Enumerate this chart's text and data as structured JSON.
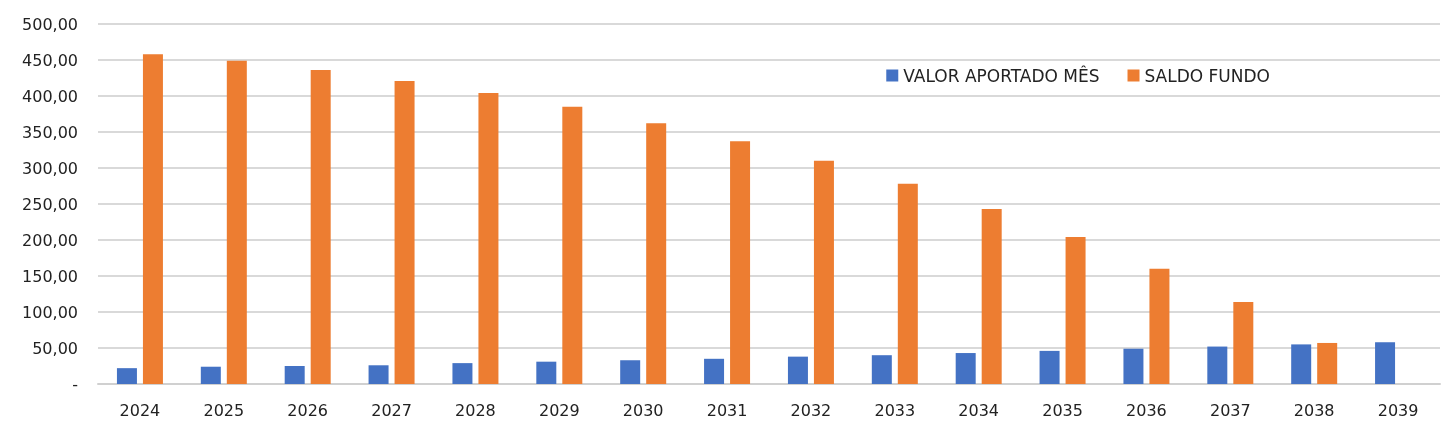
{
  "chart_data": {
    "type": "bar",
    "categories": [
      "2024",
      "2025",
      "2026",
      "2027",
      "2028",
      "2029",
      "2030",
      "2031",
      "2032",
      "2033",
      "2034",
      "2035",
      "2036",
      "2037",
      "2038",
      "2039"
    ],
    "series": [
      {
        "name": "VALOR APORTADO MÊS",
        "color": "#4472c4",
        "values": [
          22,
          24,
          25,
          26,
          29,
          31,
          33,
          35,
          38,
          40,
          43,
          46,
          49,
          52,
          55,
          58
        ]
      },
      {
        "name": "SALDO FUNDO",
        "color": "#ed7d31",
        "values": [
          458,
          449,
          436,
          421,
          404,
          385,
          362,
          337,
          310,
          278,
          243,
          204,
          160,
          114,
          57,
          null
        ]
      }
    ],
    "ylim": [
      0,
      500
    ],
    "yticks": [
      {
        "value": 0,
        "label": "-"
      },
      {
        "value": 50,
        "label": "50,00"
      },
      {
        "value": 100,
        "label": "100,00"
      },
      {
        "value": 150,
        "label": "150,00"
      },
      {
        "value": 200,
        "label": "200,00"
      },
      {
        "value": 250,
        "label": "250,00"
      },
      {
        "value": 300,
        "label": "300,00"
      },
      {
        "value": 350,
        "label": "350,00"
      },
      {
        "value": 400,
        "label": "400,00"
      },
      {
        "value": 450,
        "label": "450,00"
      },
      {
        "value": 500,
        "label": "500,00"
      }
    ],
    "grid": "y",
    "legend": "top right"
  }
}
